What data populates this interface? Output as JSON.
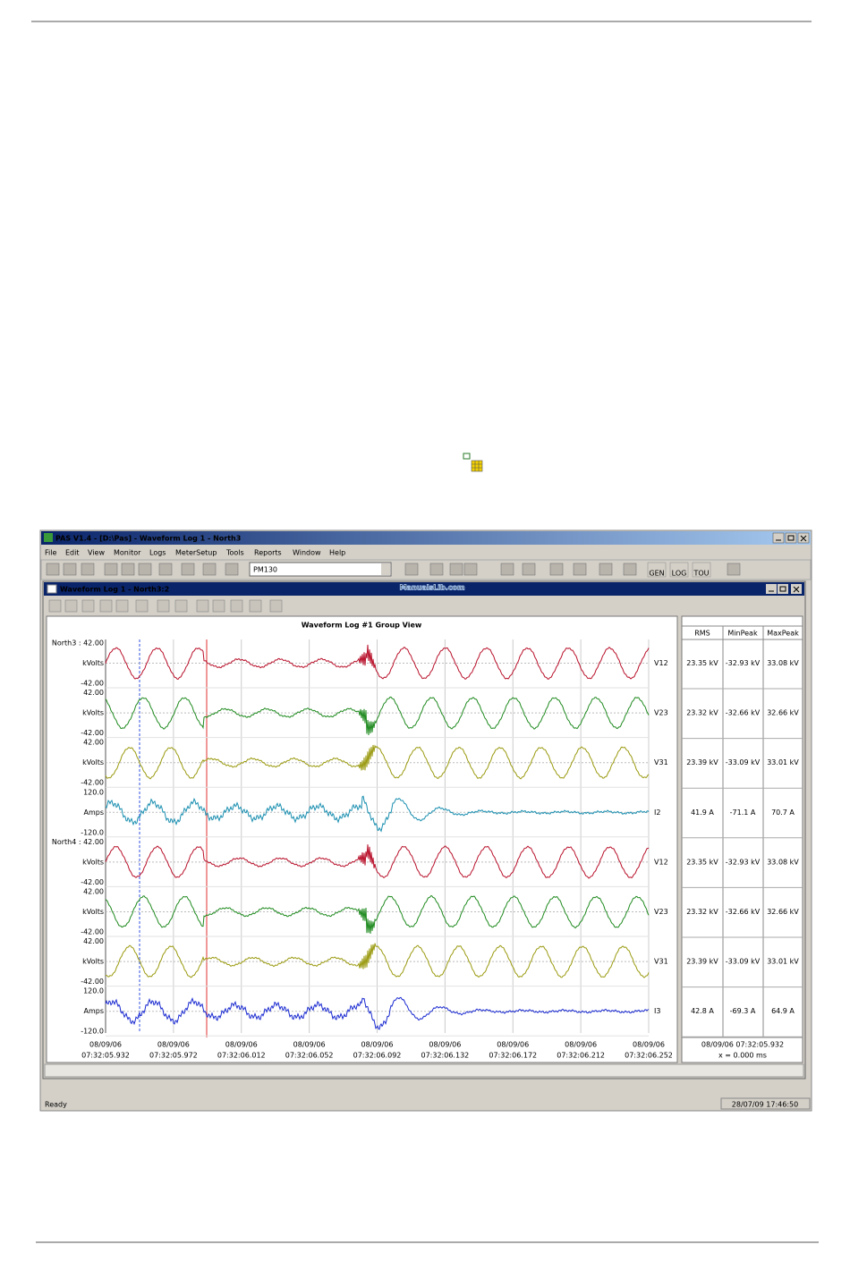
{
  "page": {
    "watermark": "ManualsLib.com"
  },
  "app": {
    "title": "PAS V1.4 - [D:\\Pas] - Waveform Log 1 - North3",
    "menu": [
      "File",
      "Edit",
      "View",
      "Monitor",
      "Logs",
      "MeterSetup",
      "Tools",
      "Reports",
      "Window",
      "Help"
    ],
    "device": "PM130",
    "toolbar_labels": [
      "GEN",
      "LOG",
      "TOU"
    ],
    "status": "Ready",
    "clock": "28/07/09 17:46:50"
  },
  "window": {
    "title": "Waveform Log 1 - North3:2",
    "chart_title": "Waveform Log #1 Group View",
    "table_header": [
      "RMS",
      "MinPeak",
      "MaxPeak"
    ],
    "rows": [
      {
        "top": "North3 : 42.00",
        "unit": "kVolts",
        "bottom": "-42.00",
        "name": "V12",
        "rms": "23.35 kV",
        "min": "-32.93 kV",
        "max": "33.08 kV",
        "color": "#b8102a"
      },
      {
        "top": "42.00",
        "unit": "kVolts",
        "bottom": "-42.00",
        "name": "V23",
        "rms": "23.32 kV",
        "min": "-32.66 kV",
        "max": "32.66 kV",
        "color": "#1f8a1f"
      },
      {
        "top": "42.00",
        "unit": "kVolts",
        "bottom": "-42.00",
        "name": "V31",
        "rms": "23.39 kV",
        "min": "-33.09 kV",
        "max": "33.01 kV",
        "color": "#9a9a10"
      },
      {
        "top": "120.0",
        "unit": "Amps",
        "bottom": "-120.0",
        "name": "I2",
        "rms": "41.9 A",
        "min": "-71.1 A",
        "max": "70.7 A",
        "color": "#1a8fb0"
      },
      {
        "top": "North4 : 42.00",
        "unit": "kVolts",
        "bottom": "-42.00",
        "name": "V12",
        "rms": "23.35 kV",
        "min": "-32.93 kV",
        "max": "33.08 kV",
        "color": "#b8102a"
      },
      {
        "top": "42.00",
        "unit": "kVolts",
        "bottom": "-42.00",
        "name": "V23",
        "rms": "23.32 kV",
        "min": "-32.66 kV",
        "max": "32.66 kV",
        "color": "#1f8a1f"
      },
      {
        "top": "42.00",
        "unit": "kVolts",
        "bottom": "-42.00",
        "name": "V31",
        "rms": "23.39 kV",
        "min": "-33.09 kV",
        "max": "33.01 kV",
        "color": "#9a9a10"
      },
      {
        "top": "120.0",
        "unit": "Amps",
        "bottom": "-120.0",
        "name": "I3",
        "rms": "42.8 A",
        "min": "-69.3 A",
        "max": "64.9 A",
        "color": "#1a2ad0"
      }
    ],
    "time_labels": [
      [
        "08/09/06",
        "07:32:05.932"
      ],
      [
        "08/09/06",
        "07:32:05.972"
      ],
      [
        "08/09/06",
        "07:32:06.012"
      ],
      [
        "08/09/06",
        "07:32:06.052"
      ],
      [
        "08/09/06",
        "07:32:06.092"
      ],
      [
        "08/09/06",
        "07:32:06.132"
      ],
      [
        "08/09/06",
        "07:32:06.172"
      ],
      [
        "08/09/06",
        "07:32:06.212"
      ],
      [
        "08/09/06",
        "07:32:06.252"
      ]
    ],
    "cursor_time": "08/09/06  07:32:05.932",
    "cursor_x": "x = 0.000 ms"
  }
}
